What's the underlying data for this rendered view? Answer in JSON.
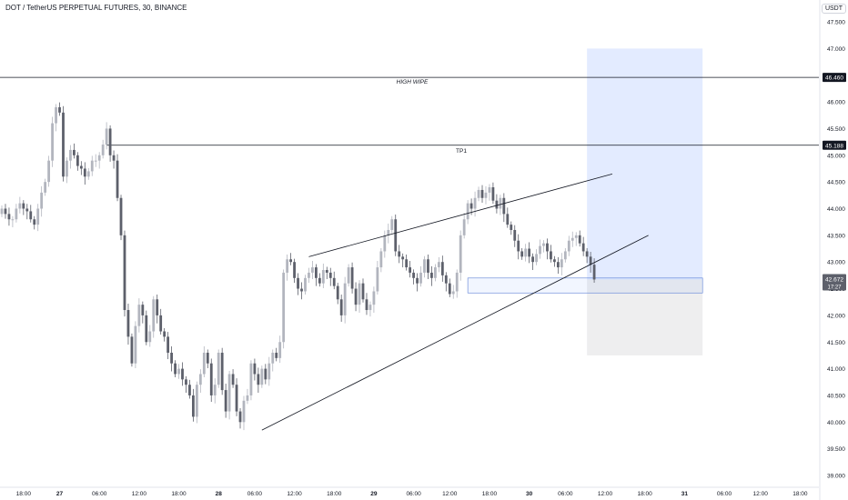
{
  "title": "DOT / TetherUS PERPETUAL FUTURES, 30, BINANCE",
  "currency": "USDT",
  "chart_data": {
    "type": "candlestick",
    "symbol": "DOT / TetherUS PERPETUAL FUTURES",
    "interval": "30",
    "exchange": "BINANCE",
    "ylim": [
      38.9,
      47.9
    ],
    "y_ticks": [
      39.0,
      39.5,
      40.0,
      40.5,
      41.0,
      41.5,
      42.0,
      42.5,
      43.0,
      43.5,
      44.0,
      44.5,
      45.0,
      45.5,
      46.0,
      46.5,
      47.0,
      47.5
    ],
    "y_tick_labels": [
      "39.000",
      "39.500",
      "40.000",
      "40.500",
      "41.000",
      "41.500",
      "42.000",
      "42.500",
      "43.000",
      "43.500",
      "44.000",
      "44.500",
      "45.000",
      "45.500",
      "46.000",
      "46.500",
      "47.000",
      "47.500"
    ],
    "x_tick_labels": [
      "18:00",
      "27",
      "06:00",
      "12:00",
      "18:00",
      "28",
      "06:00",
      "12:00",
      "18:00",
      "29",
      "06:00",
      "12:00",
      "18:00",
      "30",
      "06:00",
      "12:00",
      "18:00",
      "31",
      "06:00",
      "12:00",
      "18:00"
    ],
    "x_tick_bars": [
      6,
      16,
      27,
      38,
      49,
      60,
      70,
      81,
      92,
      103,
      114,
      124,
      135,
      146,
      156,
      167,
      178,
      189,
      200,
      210,
      221
    ],
    "closes": [
      44.0,
      43.9,
      43.8,
      43.8,
      44.0,
      44.1,
      44.0,
      43.95,
      43.8,
      43.7,
      44.0,
      44.3,
      44.5,
      44.9,
      45.6,
      45.9,
      45.8,
      44.6,
      44.9,
      45.1,
      45.0,
      44.8,
      44.75,
      44.6,
      44.7,
      44.9,
      44.9,
      45.0,
      45.2,
      45.5,
      45.0,
      44.9,
      44.2,
      43.5,
      42.1,
      41.6,
      41.1,
      41.8,
      42.2,
      42.0,
      41.5,
      41.7,
      42.3,
      42.0,
      41.7,
      41.6,
      41.3,
      41.1,
      40.9,
      41.0,
      40.8,
      40.7,
      40.5,
      40.1,
      40.7,
      40.9,
      41.3,
      41.1,
      40.5,
      40.7,
      41.3,
      40.6,
      40.2,
      40.9,
      40.7,
      40.2,
      40.0,
      40.4,
      40.5,
      41.1,
      40.9,
      40.7,
      41.0,
      40.8,
      41.1,
      41.3,
      41.2,
      41.5,
      42.8,
      43.05,
      43.0,
      42.7,
      42.5,
      42.45,
      42.7,
      42.8,
      42.9,
      42.7,
      42.6,
      42.85,
      42.8,
      42.7,
      42.55,
      42.3,
      42.0,
      42.6,
      42.9,
      42.5,
      42.2,
      42.6,
      42.3,
      42.1,
      42.2,
      42.45,
      42.9,
      43.2,
      43.5,
      43.6,
      43.8,
      43.2,
      43.1,
      43.05,
      42.9,
      42.8,
      42.7,
      42.6,
      42.8,
      43.05,
      42.8,
      42.7,
      42.9,
      43.0,
      42.75,
      42.6,
      42.4,
      42.45,
      42.8,
      43.5,
      43.8,
      44.1,
      44.0,
      44.2,
      44.35,
      44.2,
      44.3,
      44.4,
      44.15,
      44.0,
      44.2,
      43.9,
      43.7,
      43.6,
      43.4,
      43.2,
      43.1,
      43.25,
      43.1,
      43.0,
      43.15,
      43.3,
      43.35,
      43.2,
      43.05,
      43.0,
      42.9,
      43.05,
      43.2,
      43.4,
      43.45,
      43.5,
      43.35,
      43.2,
      43.1,
      42.95,
      42.672
    ],
    "current_price": 42.672,
    "current_time_label": "17:27",
    "horizontal_lines": [
      {
        "label": "HIGH WIPE",
        "value": 46.46,
        "axis_label": "46.460"
      },
      {
        "label": "TP1",
        "value": 45.188,
        "axis_label": "45.188"
      }
    ],
    "trend_lines": [
      {
        "from": [
          85,
          43.1
        ],
        "to": [
          169,
          44.65
        ]
      },
      {
        "from": [
          72,
          39.85
        ],
        "to": [
          179,
          43.5
        ]
      }
    ],
    "position": {
      "type": "long",
      "entry": 42.672,
      "target": 47.0,
      "stop": 41.25,
      "entry_zone": [
        42.42,
        42.7
      ],
      "start_bar": 162,
      "end_bar": 194
    },
    "colors": {
      "up": "#b2b5be",
      "down": "#5d606b",
      "line": "#131722",
      "profit_zone": "rgba(41,98,255,0.13)",
      "loss_zone": "rgba(120,123,134,0.13)"
    }
  }
}
